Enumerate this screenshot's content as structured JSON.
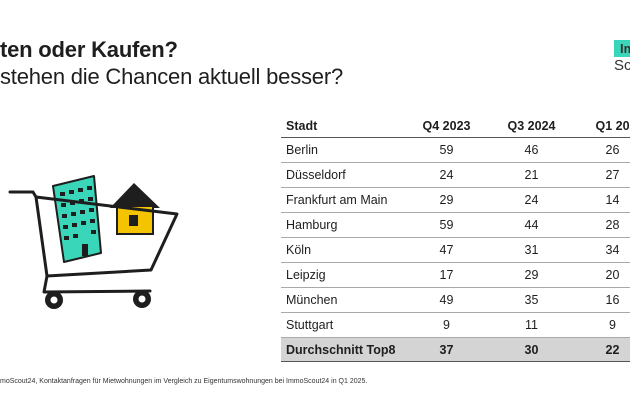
{
  "header": {
    "title": "ten oder Kaufen?",
    "subtitle": "stehen die Chancen aktuell besser?"
  },
  "logo": {
    "line1": "Im",
    "line2": "Sc",
    "accent_color": "#3ad6ba"
  },
  "illustration": {
    "icons": [
      "shopping-cart-icon",
      "apartment-building-icon",
      "house-icon"
    ],
    "colors": {
      "building": "#3ad6ba",
      "house": "#f5c400",
      "outline": "#1e1e1e"
    }
  },
  "table": {
    "headers": {
      "city": "Stadt",
      "q4_2023": "Q4 2023",
      "q3_2024": "Q3 2024",
      "q1_2025": "Q1 20"
    },
    "rows": [
      {
        "city": "Berlin",
        "q4_2023": "59",
        "q3_2024": "46",
        "q1_2025": "26"
      },
      {
        "city": "Düsseldorf",
        "q4_2023": "24",
        "q3_2024": "21",
        "q1_2025": "27"
      },
      {
        "city": "Frankfurt am Main",
        "q4_2023": "29",
        "q3_2024": "24",
        "q1_2025": "14"
      },
      {
        "city": "Hamburg",
        "q4_2023": "59",
        "q3_2024": "44",
        "q1_2025": "28"
      },
      {
        "city": "Köln",
        "q4_2023": "47",
        "q3_2024": "31",
        "q1_2025": "34"
      },
      {
        "city": "Leipzig",
        "q4_2023": "17",
        "q3_2024": "29",
        "q1_2025": "20"
      },
      {
        "city": "München",
        "q4_2023": "49",
        "q3_2024": "35",
        "q1_2025": "16"
      },
      {
        "city": "Stuttgart",
        "q4_2023": "9",
        "q3_2024": "11",
        "q1_2025": "9"
      }
    ],
    "average": {
      "city": "Durchschnitt Top8",
      "q4_2023": "37",
      "q3_2024": "30",
      "q1_2025": "22"
    }
  },
  "footer": {
    "source": "moScout24, Kontaktanfragen für  Mietwohnungen im Vergleich zu  Eigentumswohnungen bei ImmoScout24 in Q1 2025."
  }
}
